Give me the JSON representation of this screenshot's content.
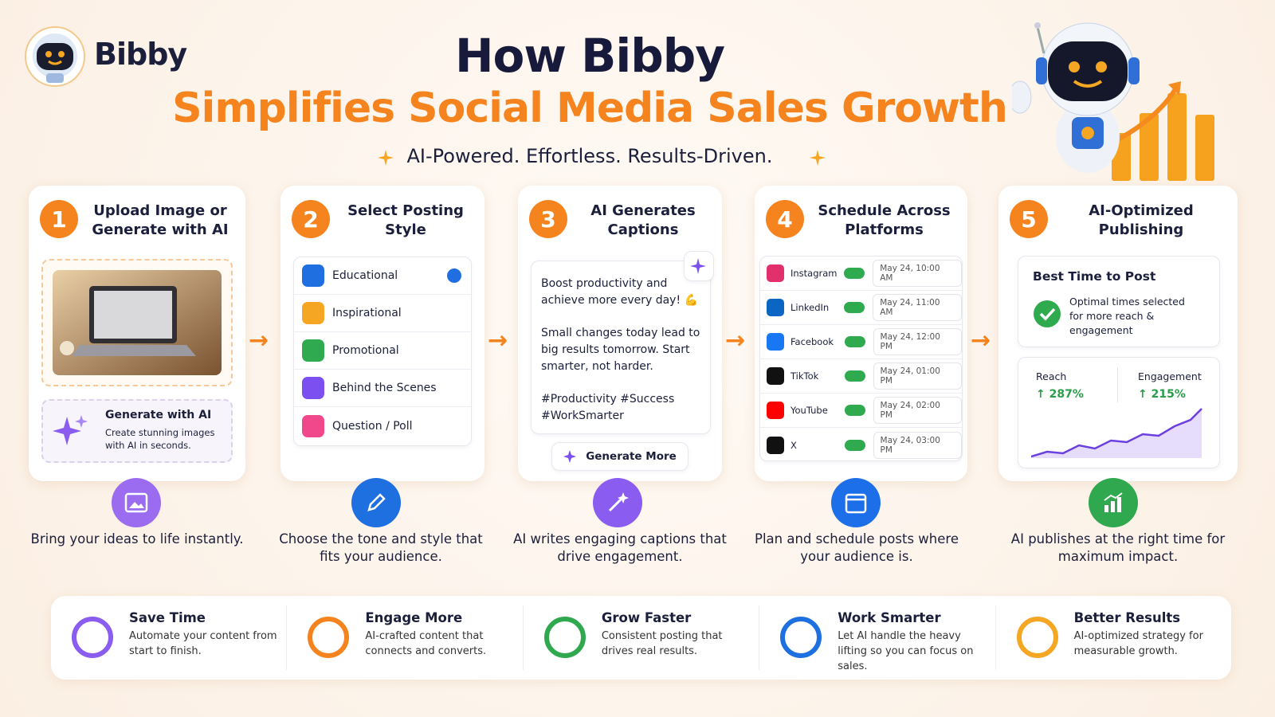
{
  "brand": "Bibby",
  "header": {
    "title": "How Bibby",
    "subtitle": "Simplifies Social Media Sales Growth",
    "tagline": "AI-Powered. Effortless. Results-Driven."
  },
  "steps": [
    {
      "number": 1,
      "title": "Upload Image or Generate with AI",
      "description": "Bring your ideas to life instantly.",
      "generate_title": "Generate with AI",
      "generate_text": "Create stunning images with AI in seconds."
    },
    {
      "number": 2,
      "title": "Select Posting Style",
      "description": "Choose the tone and style that fits your audience.",
      "options": [
        "Educational",
        "Inspirational",
        "Promotional",
        "Behind the Scenes",
        "Question / Poll"
      ]
    },
    {
      "number": 3,
      "title": "AI Generates Captions",
      "description": "AI writes engaging captions that drive engagement.",
      "caption": [
        "Boost productivity and achieve more every day! 💪",
        "Small changes today lead to big results tomorrow. Start smarter, not harder.",
        "#Productivity #Success #WorkSmarter"
      ],
      "button": "Generate More"
    },
    {
      "number": 4,
      "title": "Schedule Across Platforms",
      "description": "Plan and schedule posts where your audience is.",
      "platforms": [
        {
          "name": "Instagram",
          "time": "May 24, 10:00 AM"
        },
        {
          "name": "LinkedIn",
          "time": "May 24, 11:00 AM"
        },
        {
          "name": "Facebook",
          "time": "May 24, 12:00 PM"
        },
        {
          "name": "TikTok",
          "time": "May 24, 01:00 PM"
        },
        {
          "name": "YouTube",
          "time": "May 24, 02:00 PM"
        },
        {
          "name": "X",
          "time": "May 24, 03:00 PM"
        }
      ]
    },
    {
      "number": 5,
      "title": "AI-Optimized Publishing",
      "description": "AI publishes at the right time for maximum impact.",
      "best_time_title": "Best Time to Post",
      "best_time_text": "Optimal times selected for more reach & engagement",
      "metrics": [
        {
          "label": "Reach",
          "value": "↑ 287%"
        },
        {
          "label": "Engagement",
          "value": "↑ 215%"
        }
      ]
    }
  ],
  "benefits": [
    {
      "title": "Save Time",
      "text": "Automate your content from start to finish."
    },
    {
      "title": "Engage More",
      "text": "AI-crafted content that connects and converts."
    },
    {
      "title": "Grow Faster",
      "text": "Consistent posting that drives real results."
    },
    {
      "title": "Work Smarter",
      "text": "Let AI handle the heavy lifting so you can focus on sales."
    },
    {
      "title": "Better Results",
      "text": "AI-optimized strategy for measurable growth."
    }
  ]
}
